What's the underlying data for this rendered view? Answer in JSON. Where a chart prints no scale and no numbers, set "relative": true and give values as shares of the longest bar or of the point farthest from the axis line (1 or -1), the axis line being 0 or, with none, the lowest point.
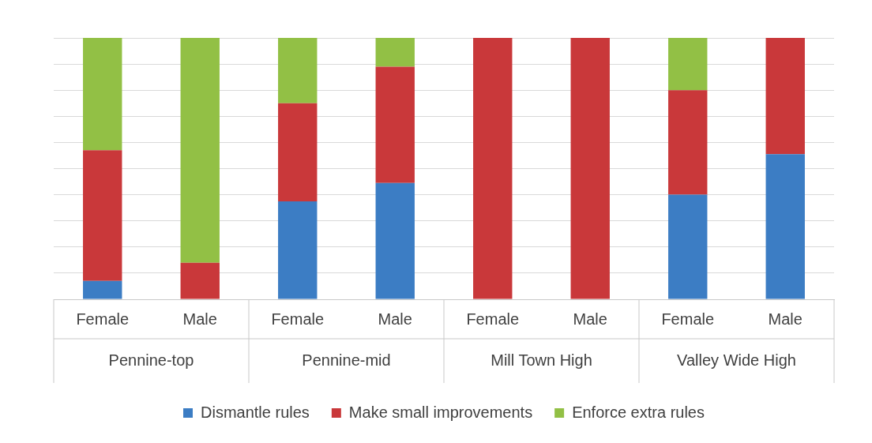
{
  "chart_data": {
    "type": "bar",
    "stacked": true,
    "relative": true,
    "grid": "y",
    "legend": "bottom",
    "categories": [
      "Female",
      "Male",
      "Female",
      "Male",
      "Female",
      "Male",
      "Female",
      "Male"
    ],
    "annotations": [
      "Pennine-top",
      "Pennine-mid",
      "Mill Town High",
      "Valley Wide High"
    ],
    "series": [
      {
        "name": "Dismantle rules",
        "color": "#3c7dc4",
        "values": [
          0.07,
          0,
          0.375,
          0.445,
          0,
          0,
          0.4,
          0.555
        ]
      },
      {
        "name": "Make small improvements",
        "color": "#c9383a",
        "values": [
          0.5,
          0.14,
          0.375,
          0.445,
          1,
          1,
          0.4,
          0.445
        ]
      },
      {
        "name": "Enforce extra rules",
        "color": "#92c045",
        "values": [
          0.43,
          0.86,
          0.25,
          0.11,
          0,
          0,
          0.2,
          0
        ]
      }
    ]
  }
}
